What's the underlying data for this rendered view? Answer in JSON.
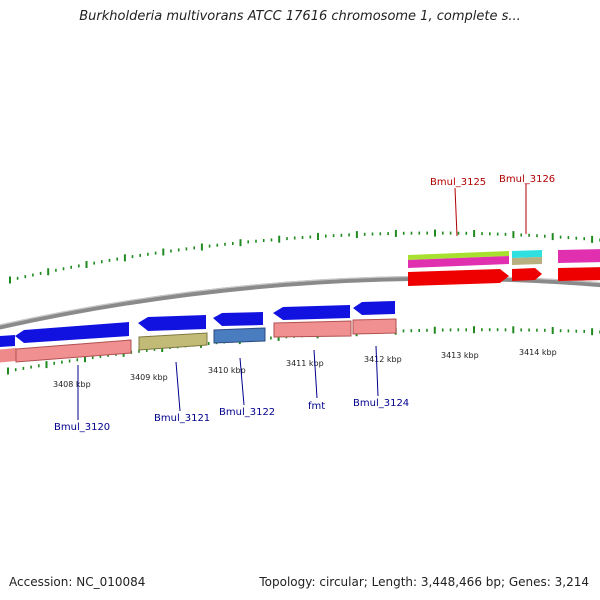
{
  "title": "Burkholderia multivorans ATCC 17616 chromosome 1, complete s...",
  "accession_text": "Accession: NC_010084",
  "summary_text": "Topology: circular; Length: 3,448,466 bp; Genes: 3,214",
  "colors": {
    "backbone": "#8a8a8a",
    "tick": "#1f8a1f",
    "forward_label": "#b00000",
    "reverse_label": "#00008b",
    "coord_label": "#222222"
  },
  "coordinate_labels": [
    "3408 kbp",
    "3409 kbp",
    "3410 kbp",
    "3411 kbp",
    "3412 kbp",
    "3413 kbp",
    "3414 kbp"
  ],
  "genes_reverse": [
    "Bmul_3120",
    "Bmul_3121",
    "Bmul_3122",
    "fmt",
    "Bmul_3124"
  ],
  "genes_forward": [
    "Bmul_3125",
    "Bmul_3126"
  ]
}
